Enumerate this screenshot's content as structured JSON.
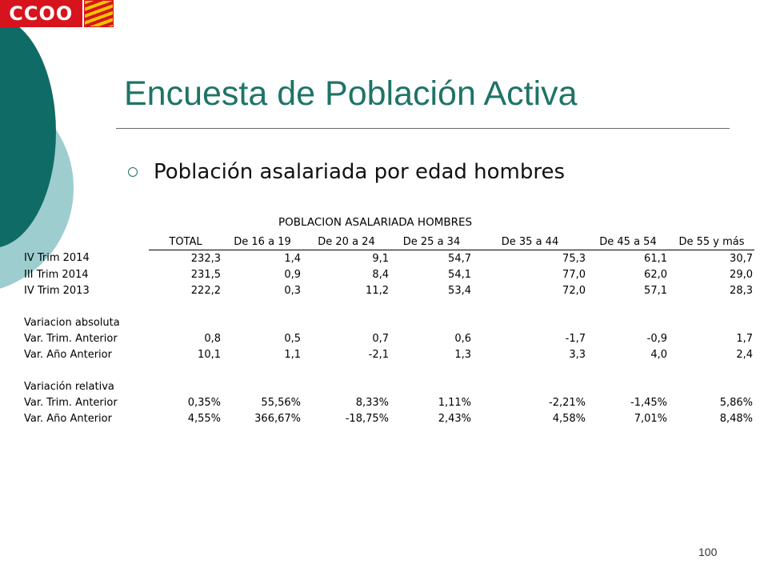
{
  "logo": {
    "text": "CCOO"
  },
  "slide": {
    "title": "Encuesta de Población Activa",
    "bullet": "Población asalariada por edad hombres",
    "page_number": "100"
  },
  "table": {
    "title": "POBLACION ASALARIADA HOMBRES",
    "columns": [
      "TOTAL",
      "De 16 a 19",
      "De 20 a 24",
      "De 25 a 34",
      "De 35 a 44",
      "De 45 a 54",
      "De 55 y más"
    ],
    "rows": [
      {
        "label": "IV Trim 2014",
        "values": [
          "232,3",
          "1,4",
          "9,1",
          "54,7",
          "75,3",
          "61,1",
          "30,7"
        ]
      },
      {
        "label": "III Trim 2014",
        "values": [
          "231,5",
          "0,9",
          "8,4",
          "54,1",
          "77,0",
          "62,0",
          "29,0"
        ]
      },
      {
        "label": "IV Trim 2013",
        "values": [
          "222,2",
          "0,3",
          "11,2",
          "53,4",
          "72,0",
          "57,1",
          "28,3"
        ]
      },
      {
        "label": "",
        "values": [
          "",
          "",
          "",
          "",
          "",
          "",
          ""
        ]
      },
      {
        "label": "Variacion absoluta",
        "values": [
          "",
          "",
          "",
          "",
          "",
          "",
          ""
        ]
      },
      {
        "label": "Var. Trim. Anterior",
        "values": [
          "0,8",
          "0,5",
          "0,7",
          "0,6",
          "-1,7",
          "-0,9",
          "1,7"
        ]
      },
      {
        "label": "Var. Año Anterior",
        "values": [
          "10,1",
          "1,1",
          "-2,1",
          "1,3",
          "3,3",
          "4,0",
          "2,4"
        ]
      },
      {
        "label": "",
        "values": [
          "",
          "",
          "",
          "",
          "",
          "",
          ""
        ]
      },
      {
        "label": "Variación relativa",
        "values": [
          "",
          "",
          "",
          "",
          "",
          "",
          ""
        ]
      },
      {
        "label": "Var. Trim. Anterior",
        "values": [
          "0,35%",
          "55,56%",
          "8,33%",
          "1,11%",
          "-2,21%",
          "-1,45%",
          "5,86%"
        ]
      },
      {
        "label": "Var. Año Anterior",
        "values": [
          "4,55%",
          "366,67%",
          "-18,75%",
          "2,43%",
          "4,58%",
          "7,01%",
          "8,48%"
        ]
      }
    ]
  },
  "colors": {
    "title": "#1e7467",
    "deco_dark": "#0f6b66",
    "deco_light": "#9dcdcf",
    "logo_red": "#d7141d",
    "logo_yellow": "#f5c400"
  }
}
